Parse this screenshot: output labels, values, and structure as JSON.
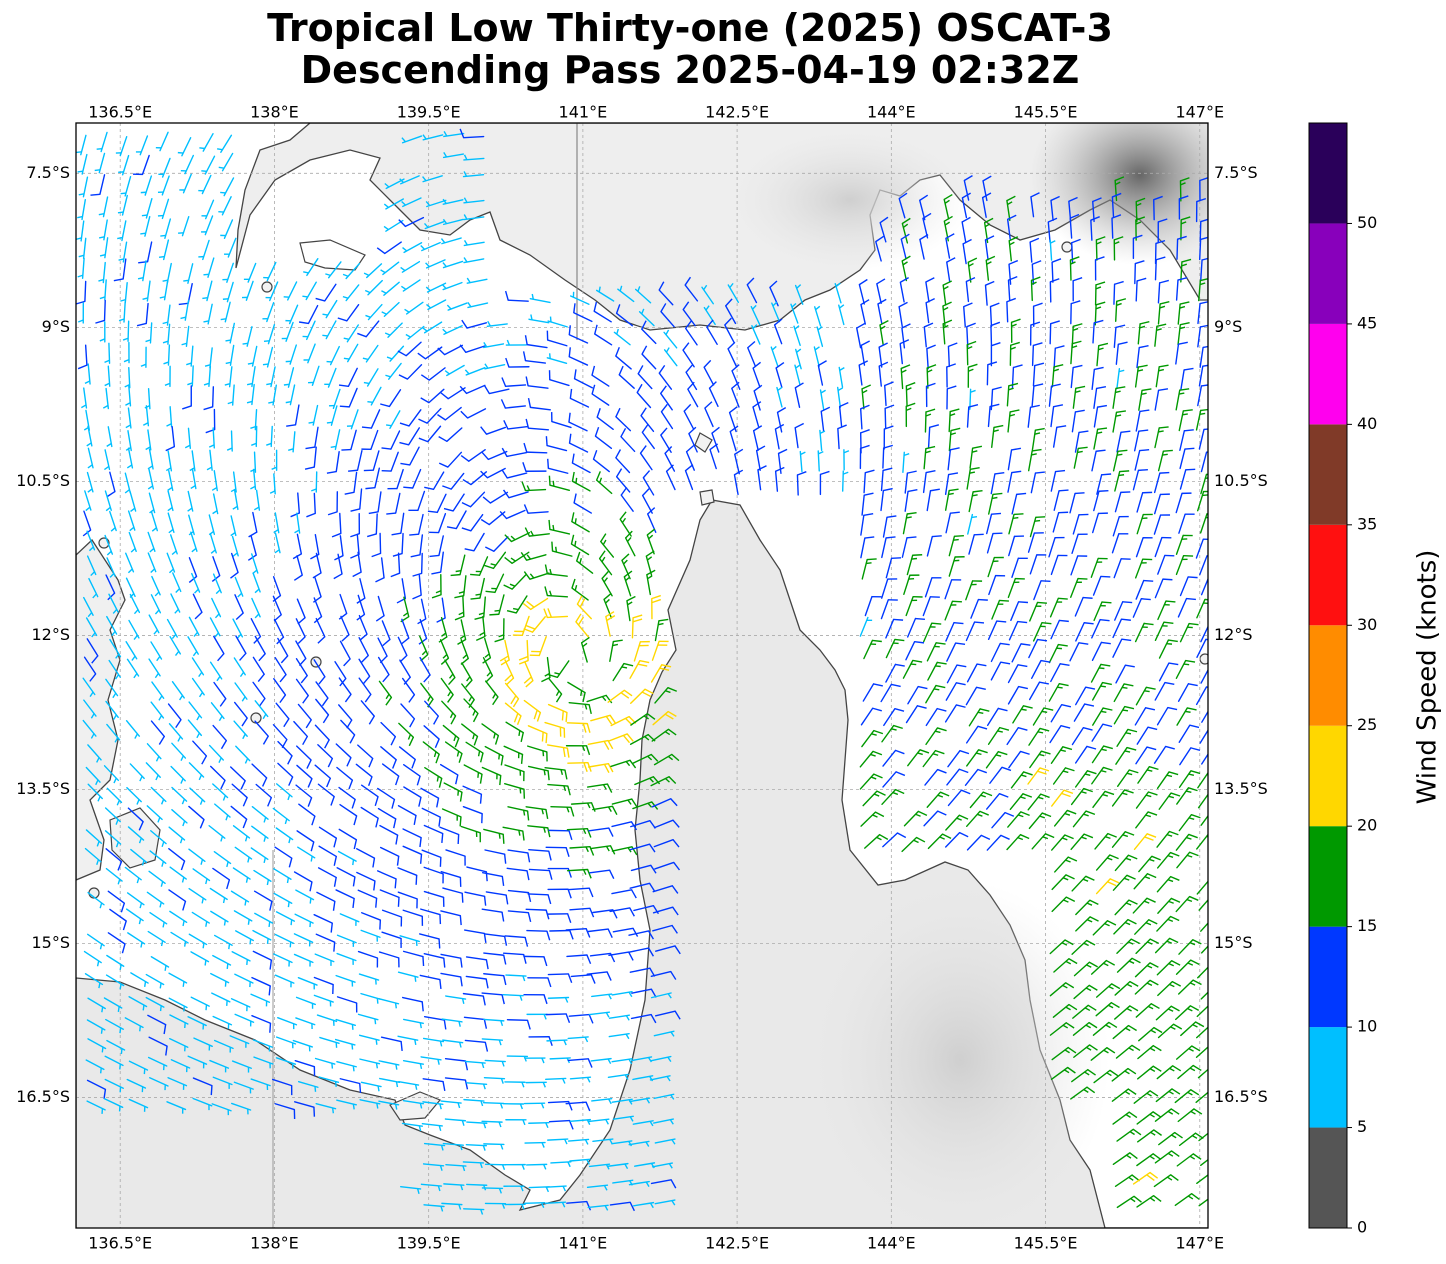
{
  "title": {
    "line1": "Tropical Low Thirty-one (2025) OSCAT-3",
    "line2": "Descending Pass 2025-04-19 02:32Z"
  },
  "map": {
    "lon_labels": [
      "136.5°E",
      "138°E",
      "139.5°E",
      "141°E",
      "142.5°E",
      "144°E",
      "145.5°E",
      "147°E"
    ],
    "lon_values": [
      136.5,
      138,
      139.5,
      141,
      142.5,
      144,
      145.5,
      147
    ],
    "lat_labels": [
      "7.5°S",
      "9°S",
      "10.5°S",
      "12°S",
      "13.5°S",
      "15°S",
      "16.5°S"
    ],
    "lat_values": [
      -7.5,
      -9,
      -10.5,
      -12,
      -13.5,
      -15,
      -16.5
    ],
    "extent": {
      "lon_min": 136.07,
      "lon_max": 147.08,
      "lat_max": -7.01,
      "lat_min": -17.77
    },
    "gridlines": true,
    "coastline_color": "#444444",
    "background": "grayscale topography",
    "storm_center": {
      "lon": 140.95,
      "lat": -12.4
    }
  },
  "colorbar": {
    "label": "Wind Speed (knots)",
    "tick_labels": [
      "0",
      "5",
      "10",
      "15",
      "20",
      "25",
      "30",
      "35",
      "40",
      "45",
      "50"
    ],
    "bins": [
      {
        "min": 0,
        "max": 5,
        "color": "#555555"
      },
      {
        "min": 5,
        "max": 10,
        "color": "#00bfff"
      },
      {
        "min": 10,
        "max": 15,
        "color": "#0038ff"
      },
      {
        "min": 15,
        "max": 20,
        "color": "#009900"
      },
      {
        "min": 20,
        "max": 25,
        "color": "#ffd700"
      },
      {
        "min": 25,
        "max": 30,
        "color": "#ff8c00"
      },
      {
        "min": 30,
        "max": 35,
        "color": "#ff1010"
      },
      {
        "min": 35,
        "max": 40,
        "color": "#803a28"
      },
      {
        "min": 40,
        "max": 45,
        "color": "#ff00ee"
      },
      {
        "min": 45,
        "max": 50,
        "color": "#8800bb"
      },
      {
        "min": 50,
        "max": 55,
        "color": "#2a005a"
      }
    ]
  }
}
